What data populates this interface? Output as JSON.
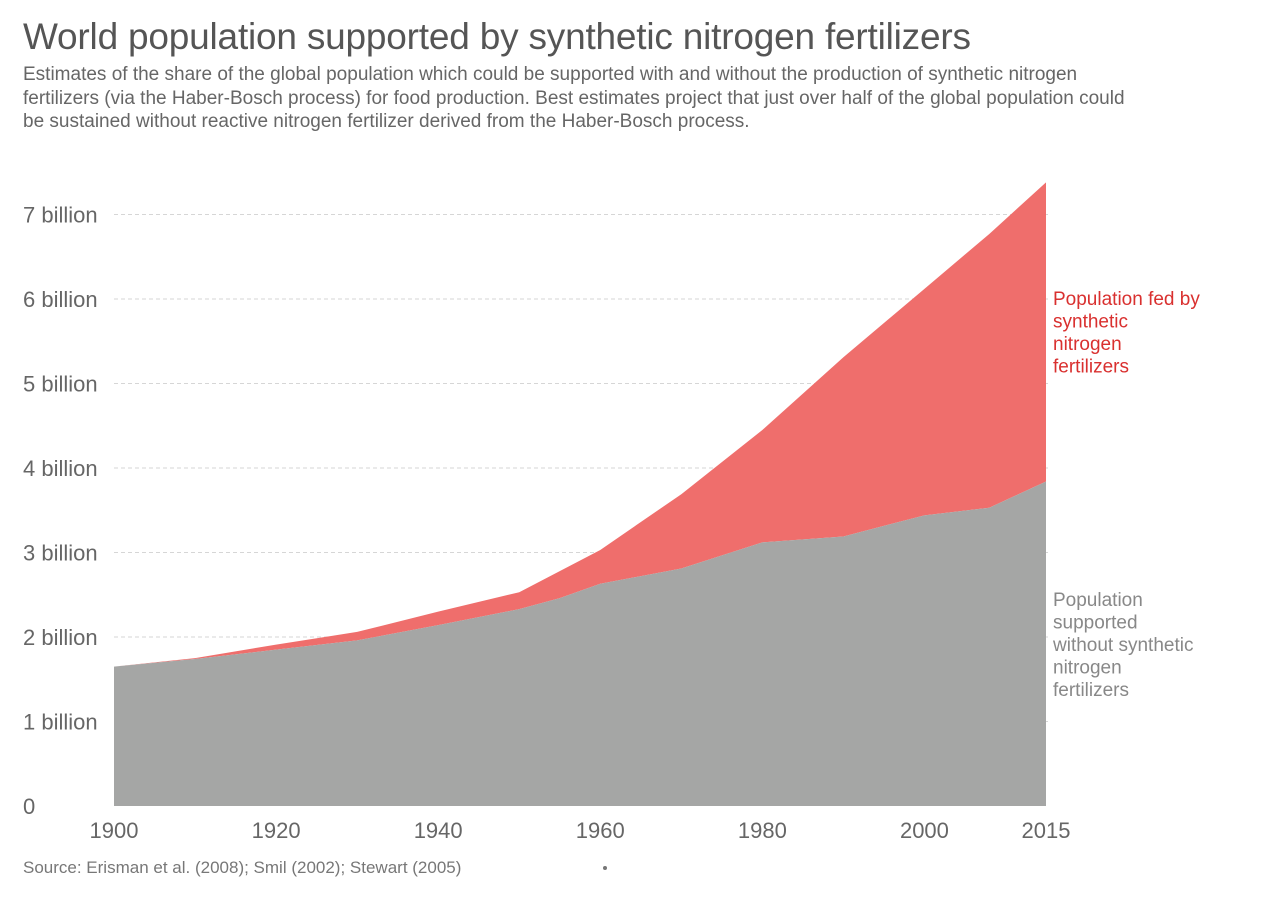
{
  "header": {
    "title": "World population supported by synthetic nitrogen fertilizers",
    "subtitle": "Estimates of the share of the global population which could be supported with and without the production of synthetic nitrogen fertilizers (via the Haber-Bosch process) for food production. Best estimates project that just over half of the global population could be sustained without reactive nitrogen fertilizer derived from the Haber-Bosch process."
  },
  "footer": {
    "source": "Source: Erisman et al. (2008); Smil (2002); Stewart (2005)"
  },
  "colors": {
    "without_fertilizer": "#a5a6a5",
    "with_fertilizer": "#ef6e6c",
    "label_with_fertilizer": "#d9302f",
    "label_without_fertilizer": "#888888",
    "grid": "#d6d6d6"
  },
  "chart_data": {
    "type": "area",
    "stacked": true,
    "title": "World population supported by synthetic nitrogen fertilizers",
    "x": [
      1900,
      1910,
      1920,
      1930,
      1940,
      1950,
      1955,
      1960,
      1970,
      1980,
      1990,
      2000,
      2008,
      2015
    ],
    "series": [
      {
        "name": "Population supported without synthetic nitrogen fertilizers",
        "label_lines": [
          "Population",
          "supported",
          "without synthetic",
          "nitrogen",
          "fertilizers"
        ],
        "color": "#a5a6a5",
        "values": [
          1.65,
          1.74,
          1.85,
          1.96,
          2.14,
          2.33,
          2.46,
          2.63,
          2.81,
          3.12,
          3.19,
          3.44,
          3.53,
          3.84
        ]
      },
      {
        "name": "Population fed by synthetic nitrogen fertilizers",
        "label_lines": [
          "Population fed by",
          "synthetic",
          "nitrogen",
          "fertilizers"
        ],
        "color": "#ef6e6c",
        "values": [
          0.0,
          0.01,
          0.06,
          0.1,
          0.16,
          0.2,
          0.32,
          0.4,
          0.88,
          1.33,
          2.12,
          2.68,
          3.24,
          3.54
        ]
      }
    ],
    "xlim": [
      1900,
      2015
    ],
    "ylim": [
      0,
      7.4
    ],
    "x_ticks": [
      {
        "value": 1900,
        "label": "1900"
      },
      {
        "value": 1920,
        "label": "1920"
      },
      {
        "value": 1940,
        "label": "1940"
      },
      {
        "value": 1960,
        "label": "1960"
      },
      {
        "value": 1980,
        "label": "1980"
      },
      {
        "value": 2000,
        "label": "2000"
      },
      {
        "value": 2015,
        "label": "2015"
      }
    ],
    "y_ticks": [
      {
        "value": 0,
        "label": "0"
      },
      {
        "value": 1,
        "label": "1 billion"
      },
      {
        "value": 2,
        "label": "2 billion"
      },
      {
        "value": 3,
        "label": "3 billion"
      },
      {
        "value": 4,
        "label": "4 billion"
      },
      {
        "value": 5,
        "label": "5 billion"
      },
      {
        "value": 6,
        "label": "6 billion"
      },
      {
        "value": 7,
        "label": "7 billion"
      }
    ],
    "grid": true,
    "legend": "inline-right",
    "xlabel": "",
    "ylabel": ""
  }
}
